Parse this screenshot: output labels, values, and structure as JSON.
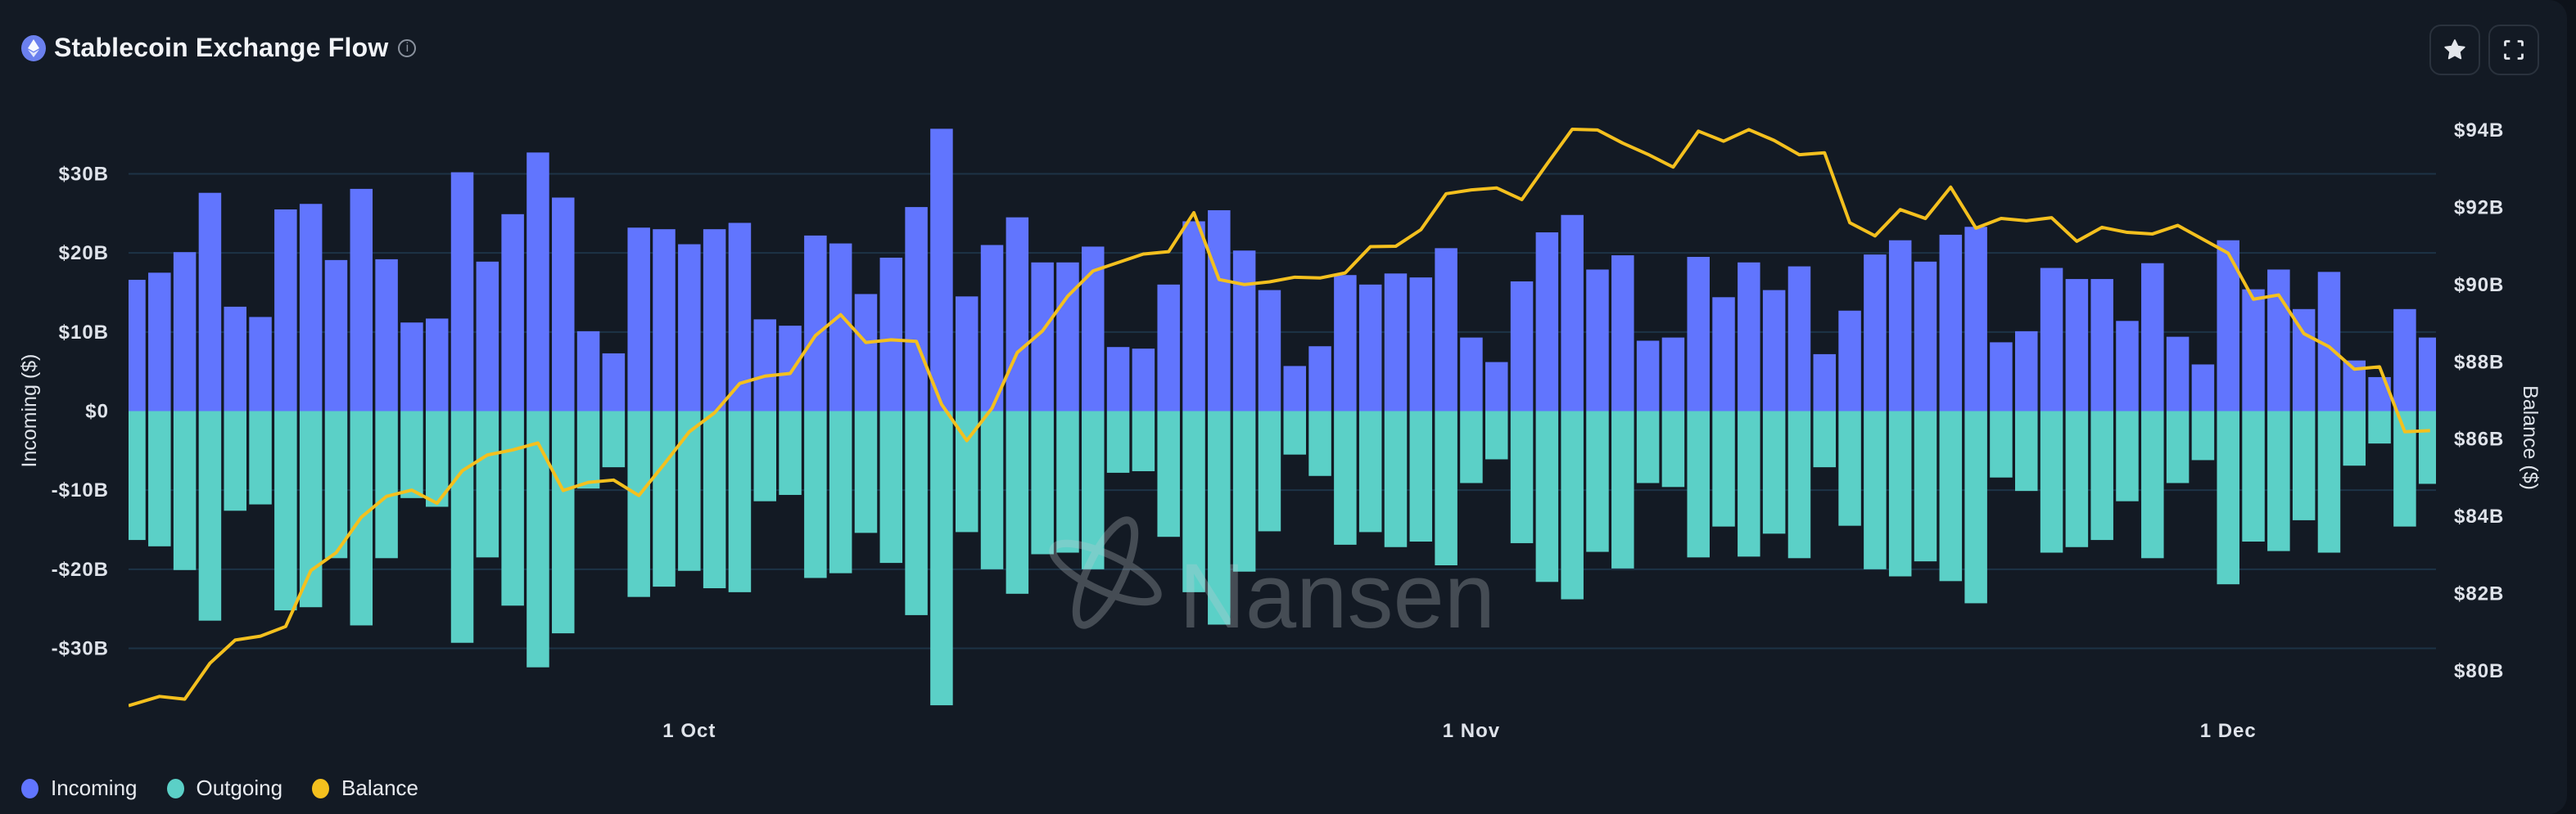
{
  "header": {
    "title": "Stablecoin Exchange Flow",
    "icon": "ethereum-icon",
    "info_icon": "info-icon"
  },
  "toolbar": {
    "favorite_icon": "star-icon",
    "fullscreen_icon": "fullscreen-icon"
  },
  "watermark": "Nansen",
  "legend": [
    {
      "label": "Incoming",
      "color": "#6175fe"
    },
    {
      "label": "Outgoing",
      "color": "#5bd0c7"
    },
    {
      "label": "Balance",
      "color": "#f4c01e"
    }
  ],
  "chart_data": {
    "type": "bar+line",
    "title": "Stablecoin Exchange Flow",
    "ylabel": "Incoming ($)",
    "y2label": "Balance ($)",
    "grid": true,
    "legend_position": "bottom-left",
    "ylim": [
      -37.5,
      37.5
    ],
    "y2lim": [
      79.05,
      94.4
    ],
    "yticks": [
      {
        "v": 30,
        "label": "$30B"
      },
      {
        "v": 20,
        "label": "$20B"
      },
      {
        "v": 10,
        "label": "$10B"
      },
      {
        "v": 0,
        "label": "$0"
      },
      {
        "v": -10,
        "label": "-$10B"
      },
      {
        "v": -20,
        "label": "-$20B"
      },
      {
        "v": -30,
        "label": "-$30B"
      }
    ],
    "y2ticks": [
      {
        "v": 94,
        "label": "$94B"
      },
      {
        "v": 92,
        "label": "$92B"
      },
      {
        "v": 90,
        "label": "$90B"
      },
      {
        "v": 88,
        "label": "$88B"
      },
      {
        "v": 86,
        "label": "$86B"
      },
      {
        "v": 84,
        "label": "$84B"
      },
      {
        "v": 82,
        "label": "$82B"
      },
      {
        "v": 80,
        "label": "$80B"
      }
    ],
    "xticks": [
      {
        "x": "1 Oct",
        "label": "1 Oct"
      },
      {
        "x": "1 Nov",
        "label": "1 Nov"
      },
      {
        "x": "1 Dec",
        "label": "1 Dec"
      }
    ],
    "x": [
      "9 Sep",
      "10 Sep",
      "11 Sep",
      "12 Sep",
      "13 Sep",
      "14 Sep",
      "15 Sep",
      "16 Sep",
      "17 Sep",
      "18 Sep",
      "19 Sep",
      "20 Sep",
      "21 Sep",
      "22 Sep",
      "23 Sep",
      "24 Sep",
      "25 Sep",
      "26 Sep",
      "27 Sep",
      "28 Sep",
      "29 Sep",
      "30 Sep",
      "1 Oct",
      "2 Oct",
      "3 Oct",
      "4 Oct",
      "5 Oct",
      "6 Oct",
      "7 Oct",
      "8 Oct",
      "9 Oct",
      "10 Oct",
      "11 Oct",
      "12 Oct",
      "13 Oct",
      "14 Oct",
      "15 Oct",
      "16 Oct",
      "17 Oct",
      "18 Oct",
      "19 Oct",
      "20 Oct",
      "21 Oct",
      "22 Oct",
      "23 Oct",
      "24 Oct",
      "25 Oct",
      "26 Oct",
      "27 Oct",
      "28 Oct",
      "29 Oct",
      "30 Oct",
      "31 Oct",
      "1 Nov",
      "2 Nov",
      "3 Nov",
      "4 Nov",
      "5 Nov",
      "6 Nov",
      "7 Nov",
      "8 Nov",
      "9 Nov",
      "10 Nov",
      "11 Nov",
      "12 Nov",
      "13 Nov",
      "14 Nov",
      "15 Nov",
      "16 Nov",
      "17 Nov",
      "18 Nov",
      "19 Nov",
      "20 Nov",
      "21 Nov",
      "22 Nov",
      "23 Nov",
      "24 Nov",
      "25 Nov",
      "26 Nov",
      "27 Nov",
      "28 Nov",
      "29 Nov",
      "30 Nov",
      "1 Dec",
      "2 Dec",
      "3 Dec",
      "4 Dec",
      "5 Dec",
      "6 Dec",
      "7 Dec",
      "8 Dec",
      "9 Dec"
    ],
    "series": [
      {
        "name": "Incoming",
        "type": "bar",
        "axis": "left",
        "color": "#6175fe",
        "unit": "$B",
        "values": [
          16.6,
          17.5,
          20.1,
          27.6,
          13.2,
          11.9,
          25.5,
          26.2,
          19.1,
          28.1,
          19.2,
          11.2,
          11.7,
          30.2,
          18.9,
          24.9,
          32.7,
          27.0,
          10.1,
          7.3,
          23.2,
          23.0,
          21.1,
          23.0,
          23.8,
          11.6,
          10.8,
          22.2,
          21.2,
          14.8,
          19.4,
          25.8,
          35.7,
          14.5,
          21.0,
          24.5,
          18.8,
          18.8,
          20.8,
          8.1,
          7.9,
          16.0,
          24.0,
          25.4,
          20.3,
          15.3,
          5.7,
          8.2,
          17.2,
          16.0,
          17.4,
          16.9,
          20.6,
          9.3,
          6.2,
          16.4,
          22.6,
          24.8,
          17.9,
          19.7,
          8.9,
          9.3,
          19.5,
          14.4,
          18.8,
          15.3,
          18.3,
          7.2,
          12.7,
          19.8,
          21.6,
          18.9,
          22.3,
          23.3,
          8.7,
          10.1,
          18.1,
          16.7,
          16.7,
          11.4,
          18.7,
          9.4,
          5.9,
          21.6,
          15.4,
          17.9,
          12.9,
          17.6,
          6.4,
          4.3,
          12.9,
          9.3
        ]
      },
      {
        "name": "Outgoing",
        "type": "bar",
        "axis": "left",
        "color": "#5bd0c7",
        "unit": "$B",
        "values": [
          -16.3,
          -17.1,
          -20.1,
          -26.5,
          -12.6,
          -11.8,
          -25.2,
          -24.8,
          -18.6,
          -27.1,
          -18.6,
          -11.0,
          -12.1,
          -29.3,
          -18.5,
          -24.6,
          -32.4,
          -28.1,
          -9.8,
          -7.1,
          -23.5,
          -22.2,
          -20.2,
          -22.4,
          -22.9,
          -11.4,
          -10.6,
          -21.1,
          -20.5,
          -15.4,
          -19.2,
          -25.8,
          -37.2,
          -15.3,
          -20.0,
          -23.1,
          -18.1,
          -17.9,
          -20.0,
          -7.8,
          -7.6,
          -15.9,
          -22.9,
          -27.0,
          -20.3,
          -15.2,
          -5.5,
          -8.2,
          -16.9,
          -15.3,
          -17.2,
          -16.5,
          -19.5,
          -9.1,
          -6.1,
          -16.7,
          -21.6,
          -23.8,
          -17.8,
          -19.9,
          -9.1,
          -9.6,
          -18.5,
          -14.6,
          -18.4,
          -15.5,
          -18.6,
          -7.1,
          -14.5,
          -20.0,
          -20.9,
          -19.0,
          -21.5,
          -24.3,
          -8.4,
          -10.1,
          -17.9,
          -17.2,
          -16.3,
          -11.4,
          -18.6,
          -9.1,
          -6.2,
          -21.9,
          -16.5,
          -17.7,
          -13.8,
          -17.9,
          -6.9,
          -4.1,
          -14.6,
          -9.2
        ]
      },
      {
        "name": "Balance",
        "type": "line",
        "axis": "right",
        "color": "#f4c01e",
        "unit": "$B",
        "values": [
          79.1,
          79.34,
          79.27,
          80.2,
          80.8,
          80.9,
          81.15,
          82.6,
          83.06,
          83.98,
          84.52,
          84.68,
          84.34,
          85.18,
          85.59,
          85.72,
          85.9,
          84.67,
          84.88,
          84.94,
          84.54,
          85.35,
          86.19,
          86.68,
          87.44,
          87.63,
          87.7,
          88.68,
          89.22,
          88.5,
          88.57,
          88.53,
          86.9,
          85.96,
          86.8,
          88.24,
          88.8,
          89.7,
          90.35,
          90.57,
          90.79,
          90.85,
          91.86,
          90.13,
          90.0,
          90.07,
          90.19,
          90.17,
          90.3,
          90.98,
          90.99,
          91.42,
          92.35,
          92.45,
          92.5,
          92.2,
          93.12,
          94.02,
          94.0,
          93.66,
          93.37,
          93.04,
          93.97,
          93.71,
          94.01,
          93.73,
          93.36,
          93.41,
          91.6,
          91.26,
          91.94,
          91.71,
          92.52,
          91.46,
          91.71,
          91.65,
          91.73,
          91.12,
          91.48,
          91.35,
          91.31,
          91.53,
          91.17,
          90.81,
          89.62,
          89.73,
          88.73,
          88.39,
          87.81,
          87.87,
          86.19,
          86.22
        ]
      }
    ]
  }
}
